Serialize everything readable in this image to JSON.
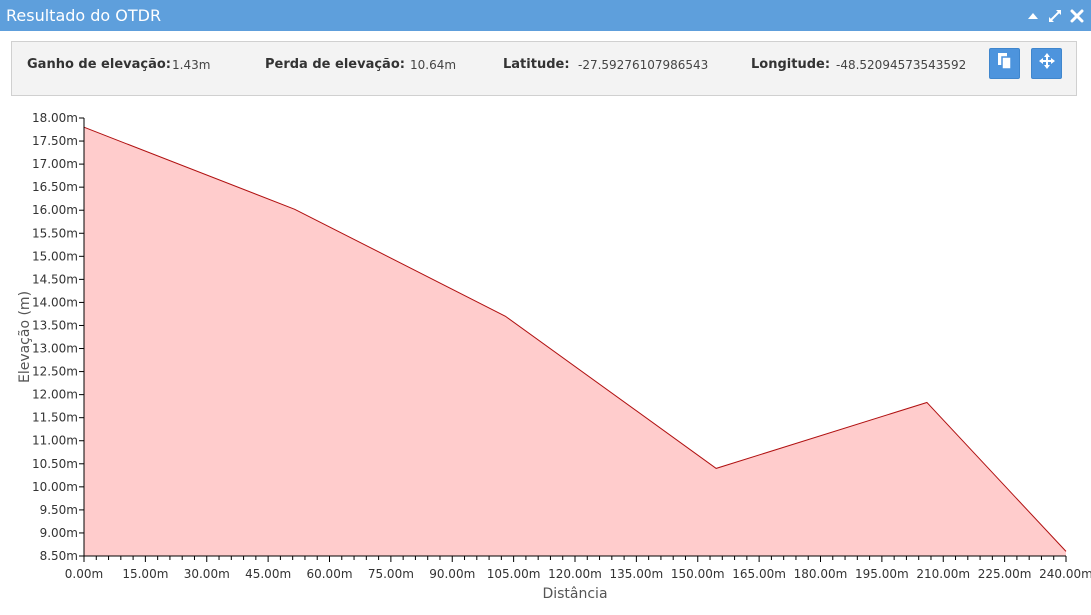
{
  "window": {
    "title": "Resultado do OTDR"
  },
  "icons": {
    "collapse": "collapse-icon",
    "expand": "expand-icon",
    "close": "close-icon",
    "copy": "copy-icon",
    "locate": "locate-icon"
  },
  "info": {
    "gain_label": "Ganho de elevação:",
    "gain_value": "1.43m",
    "loss_label": "Perda de elevação:",
    "loss_value": "10.64m",
    "lat_label": "Latitude:",
    "lat_value": "-27.59276107986543",
    "lon_label": "Longitude:",
    "lon_value": "-48.52094573543592"
  },
  "colors": {
    "titlebar": "#5e9fdc",
    "button": "#4d94dd",
    "area_fill": "#ffcccc",
    "line": "#b01010"
  },
  "chart_data": {
    "type": "area",
    "xlabel": "Distância",
    "ylabel": "Elevação (m)",
    "xlim": [
      0,
      240
    ],
    "ylim": [
      8.5,
      18
    ],
    "x_ticks": [
      0,
      15,
      30,
      45,
      60,
      75,
      90,
      105,
      120,
      135,
      150,
      165,
      180,
      195,
      210,
      225,
      240
    ],
    "x_tick_labels": [
      "0.00m",
      "15.00m",
      "30.00m",
      "45.00m",
      "60.00m",
      "75.00m",
      "90.00m",
      "105.00m",
      "120.00m",
      "135.00m",
      "150.00m",
      "165.00m",
      "180.00m",
      "195.00m",
      "210.00m",
      "225.00m",
      "240.00m"
    ],
    "y_ticks": [
      8.5,
      9,
      9.5,
      10,
      10.5,
      11,
      11.5,
      12,
      12.5,
      13,
      13.5,
      14,
      14.5,
      15,
      15.5,
      16,
      16.5,
      17,
      17.5,
      18
    ],
    "y_tick_labels": [
      "8.50m",
      "9.00m",
      "9.50m",
      "10.00m",
      "10.50m",
      "11.00m",
      "11.50m",
      "12.00m",
      "12.50m",
      "13.00m",
      "13.50m",
      "14.00m",
      "14.50m",
      "15.00m",
      "15.50m",
      "16.00m",
      "16.50m",
      "17.00m",
      "17.50m",
      "18.00m"
    ],
    "series": [
      {
        "x": [
          0,
          51.5,
          103,
          154.5,
          206,
          240
        ],
        "y": [
          17.8,
          16.02,
          13.7,
          10.4,
          11.83,
          8.6
        ]
      }
    ],
    "grid": false
  }
}
